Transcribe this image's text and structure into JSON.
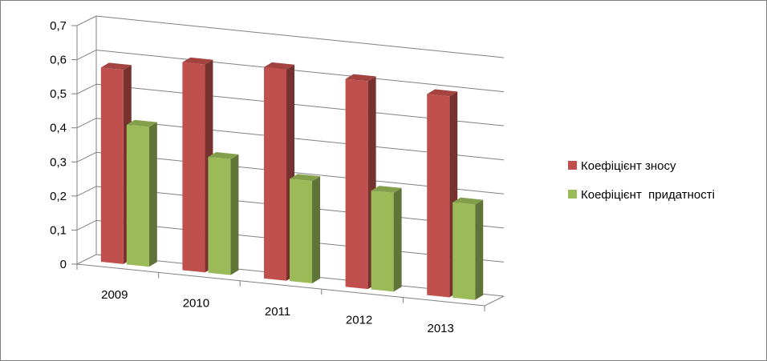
{
  "chart_data": {
    "type": "bar",
    "categories": [
      "2009",
      "2010",
      "2011",
      "2012",
      "2013"
    ],
    "series": [
      {
        "name": "Коефіцієнт зносу",
        "values": [
          0.57,
          0.61,
          0.62,
          0.61,
          0.59
        ],
        "color": "#c0504d"
      },
      {
        "name": "Коефіцієнт  придатності",
        "values": [
          0.41,
          0.34,
          0.3,
          0.29,
          0.28
        ],
        "color": "#9bbb59"
      }
    ],
    "y_ticks": [
      "0",
      "0,1",
      "0,2",
      "0,3",
      "0,4",
      "0,5",
      "0,6",
      "0,7"
    ],
    "ylim": [
      0,
      0.7
    ],
    "grid": true,
    "legend_position": "right",
    "style": "3d-clustered-column"
  }
}
